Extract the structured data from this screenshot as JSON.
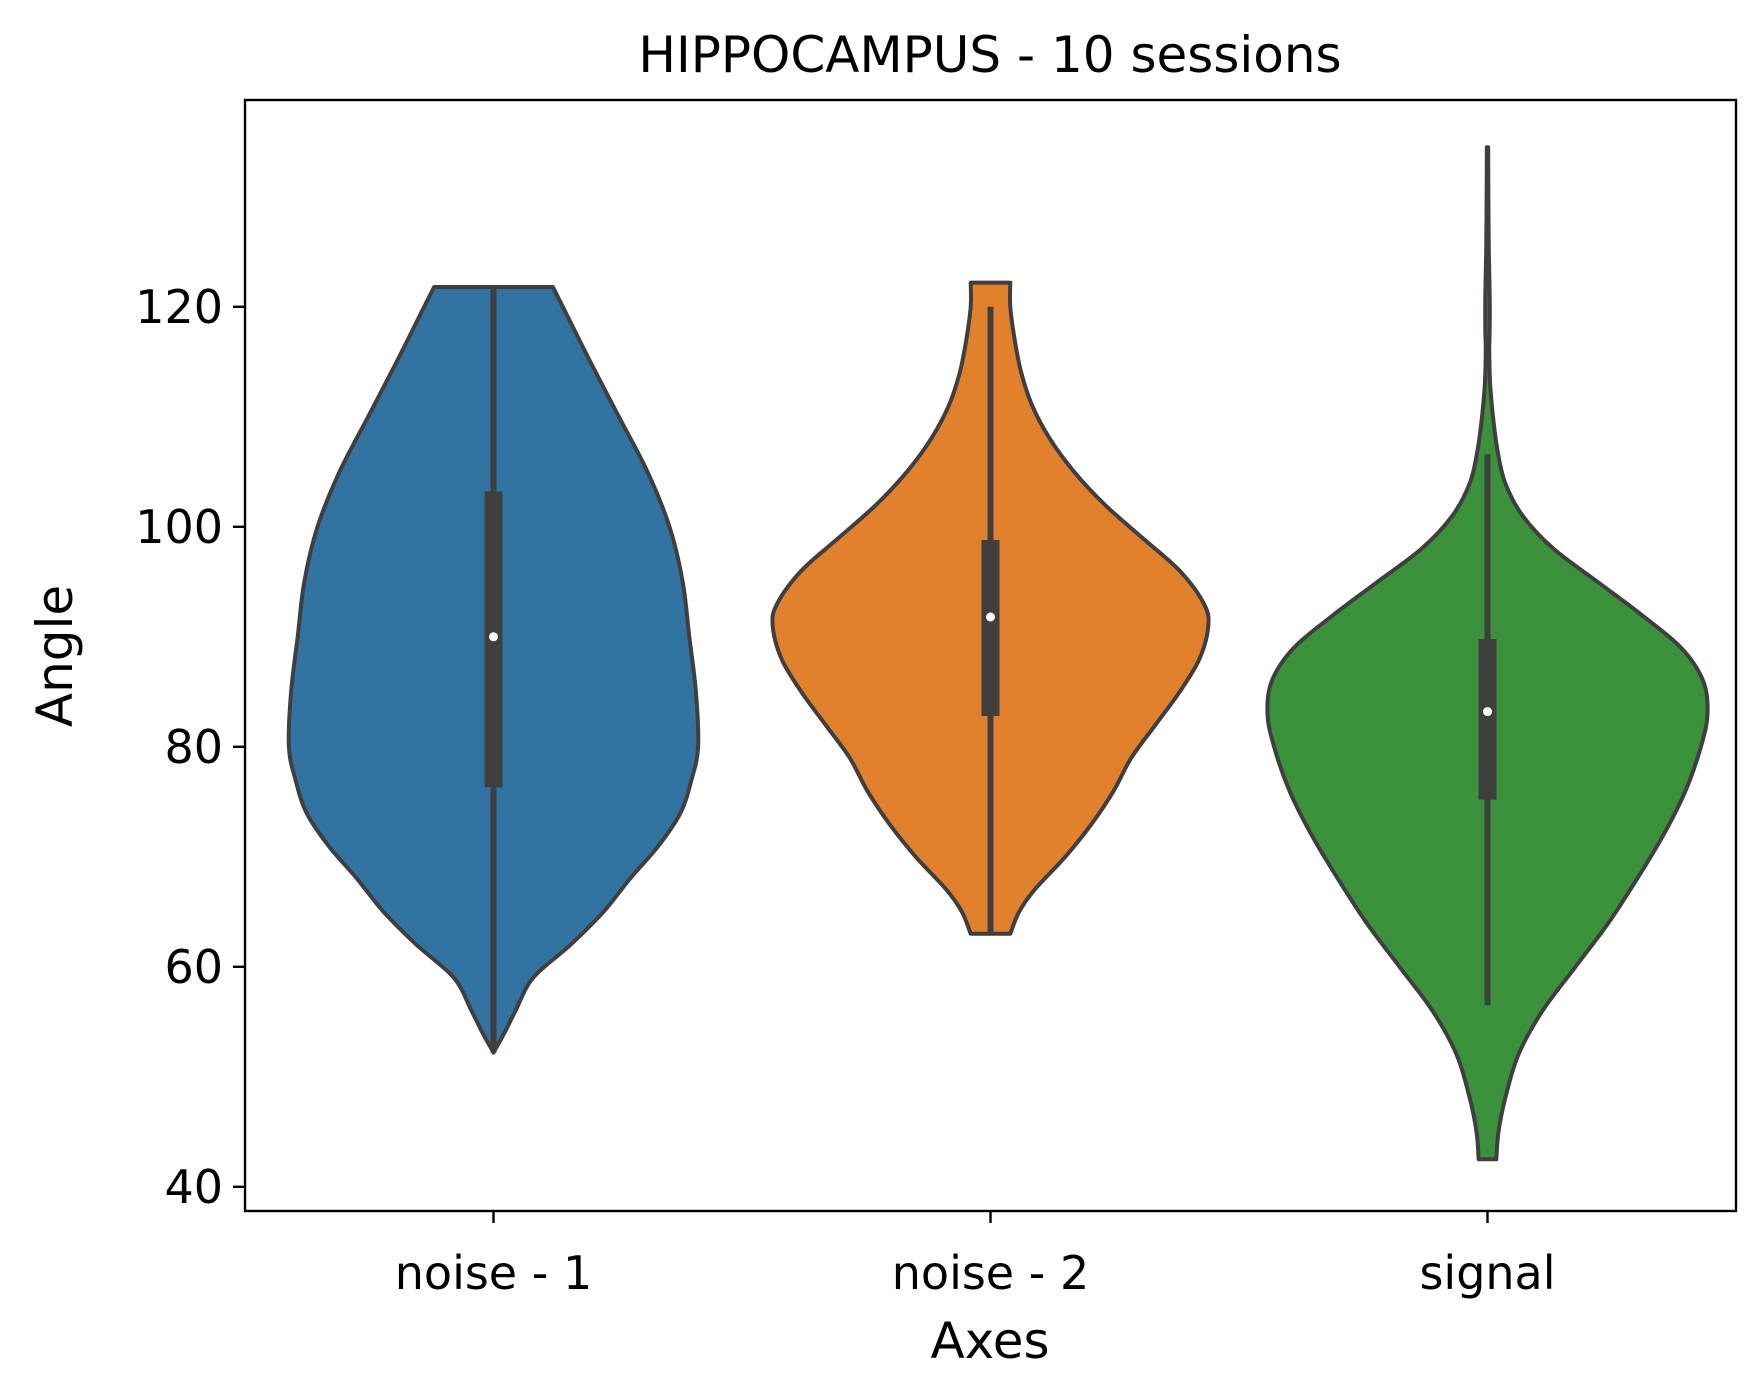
{
  "chart_data": {
    "type": "violin",
    "title": "HIPPOCAMPUS - 10 sessions",
    "xlabel": "Axes",
    "ylabel": "Angle",
    "ylim": [
      37.8,
      138.8
    ],
    "yticks": [
      40,
      60,
      80,
      100,
      120
    ],
    "categories": [
      "noise - 1",
      "noise - 2",
      "signal"
    ],
    "grid": false,
    "legend": "none",
    "edge_color": "#3f3f3f",
    "series": [
      {
        "category": "noise - 1",
        "color": "#3274a1",
        "min": 52.2,
        "q1": 76.3,
        "median": 90.0,
        "q3": 103.2,
        "max": 121.8,
        "density_profile": [
          [
            52.2,
            0.0
          ],
          [
            54,
            0.05
          ],
          [
            56,
            0.1
          ],
          [
            59,
            0.18
          ],
          [
            62,
            0.35
          ],
          [
            65,
            0.5
          ],
          [
            68,
            0.62
          ],
          [
            71,
            0.75
          ],
          [
            74,
            0.85
          ],
          [
            77,
            0.9
          ],
          [
            80,
            0.93
          ],
          [
            85,
            0.92
          ],
          [
            90,
            0.89
          ],
          [
            95,
            0.86
          ],
          [
            100,
            0.8
          ],
          [
            105,
            0.7
          ],
          [
            110,
            0.57
          ],
          [
            115,
            0.44
          ],
          [
            119,
            0.34
          ],
          [
            121.8,
            0.27
          ]
        ]
      },
      {
        "category": "noise - 2",
        "color": "#e1812c",
        "min": 63.0,
        "q1": 82.8,
        "median": 91.8,
        "q3": 98.8,
        "max": 120.0,
        "density_profile": [
          [
            63.0,
            0.09
          ],
          [
            65,
            0.13
          ],
          [
            67,
            0.2
          ],
          [
            70,
            0.34
          ],
          [
            73,
            0.46
          ],
          [
            76,
            0.56
          ],
          [
            79,
            0.64
          ],
          [
            82,
            0.75
          ],
          [
            85,
            0.86
          ],
          [
            88,
            0.95
          ],
          [
            91,
            0.99
          ],
          [
            93,
            0.97
          ],
          [
            96,
            0.86
          ],
          [
            99,
            0.69
          ],
          [
            102,
            0.52
          ],
          [
            105,
            0.38
          ],
          [
            108,
            0.27
          ],
          [
            111,
            0.19
          ],
          [
            114,
            0.14
          ],
          [
            117,
            0.11
          ],
          [
            120,
            0.09
          ],
          [
            122.2,
            0.09
          ]
        ]
      },
      {
        "category": "signal",
        "color": "#3a923a",
        "min": 56.5,
        "q1": 75.2,
        "median": 83.2,
        "q3": 89.8,
        "max": 106.6,
        "density_profile": [
          [
            42.5,
            0.04
          ],
          [
            45,
            0.05
          ],
          [
            48,
            0.08
          ],
          [
            52,
            0.14
          ],
          [
            56,
            0.25
          ],
          [
            60,
            0.4
          ],
          [
            64,
            0.55
          ],
          [
            68,
            0.68
          ],
          [
            72,
            0.8
          ],
          [
            76,
            0.9
          ],
          [
            80,
            0.97
          ],
          [
            83,
            1.0
          ],
          [
            86,
            0.98
          ],
          [
            89,
            0.88
          ],
          [
            92,
            0.7
          ],
          [
            95,
            0.5
          ],
          [
            98,
            0.3
          ],
          [
            101,
            0.16
          ],
          [
            104,
            0.08
          ],
          [
            107,
            0.045
          ],
          [
            110,
            0.025
          ],
          [
            113,
            0.012
          ],
          [
            116,
            0.008
          ],
          [
            118,
            0.01
          ],
          [
            121,
            0.01
          ],
          [
            125,
            0.006
          ],
          [
            130,
            0.004
          ],
          [
            134.5,
            0.003
          ]
        ]
      }
    ]
  }
}
